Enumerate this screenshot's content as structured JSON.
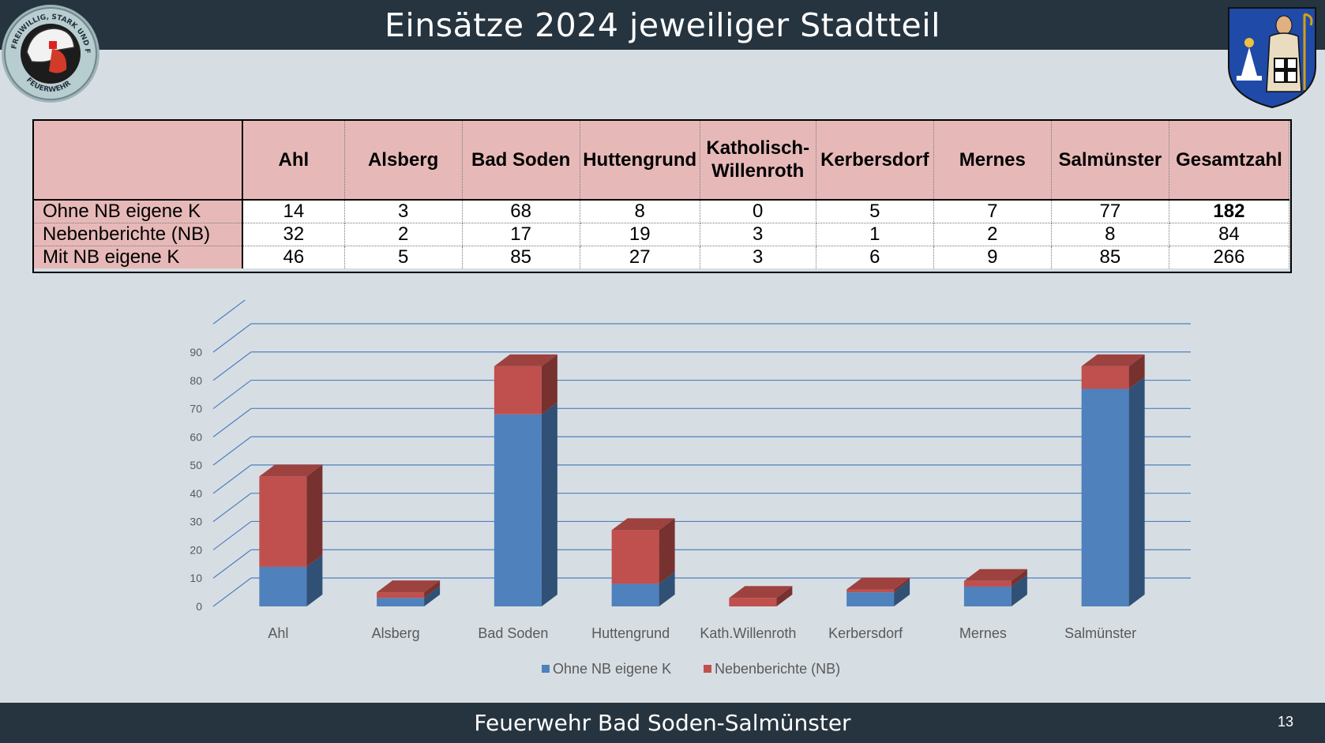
{
  "slide": {
    "title": "Einsätze 2024 jeweiliger Stadtteil",
    "footer": "Feuerwehr Bad Soden-Salmünster",
    "page_number": "13"
  },
  "logo_left": {
    "ring_text": "FREIWILLIG, STARK UND FAIR",
    "bottom_text": "FEUERWEHR"
  },
  "table": {
    "columns": [
      "Ahl",
      "Alsberg",
      "Bad Soden",
      "Huttengrund",
      "Katholisch-\nWillenroth",
      "Kerbersdorf",
      "Mernes",
      "Salmünster",
      "Gesamtzahl"
    ],
    "rows": [
      {
        "label": "Ohne NB eigene K",
        "values": [
          "14",
          "3",
          "68",
          "8",
          "0",
          "5",
          "7",
          "77",
          "182"
        ]
      },
      {
        "label": "Nebenberichte (NB)",
        "values": [
          "32",
          "2",
          "17",
          "19",
          "3",
          "1",
          "2",
          "8",
          "84"
        ]
      },
      {
        "label": "Mit NB eigene K",
        "values": [
          "46",
          "5",
          "85",
          "27",
          "3",
          "6",
          "9",
          "85",
          "266"
        ]
      }
    ]
  },
  "chart_data": {
    "type": "bar",
    "stacked": true,
    "three_d": true,
    "categories": [
      "Ahl",
      "Alsberg",
      "Bad Soden",
      "Huttengrund",
      "Kath.Willenroth",
      "Kerbersdorf",
      "Mernes",
      "Salmünster"
    ],
    "series": [
      {
        "name": "Ohne NB eigene K",
        "values": [
          14,
          3,
          68,
          8,
          0,
          5,
          7,
          77
        ],
        "color": "#4f81bd"
      },
      {
        "name": "Nebenberichte (NB)",
        "values": [
          32,
          2,
          17,
          19,
          3,
          1,
          2,
          8
        ],
        "color": "#c0504d"
      }
    ],
    "ylim": [
      0,
      90
    ],
    "yticks": [
      "0",
      "10",
      "20",
      "30",
      "40",
      "50",
      "60",
      "70",
      "80",
      "90"
    ],
    "grid": true,
    "legend_position": "bottom"
  }
}
